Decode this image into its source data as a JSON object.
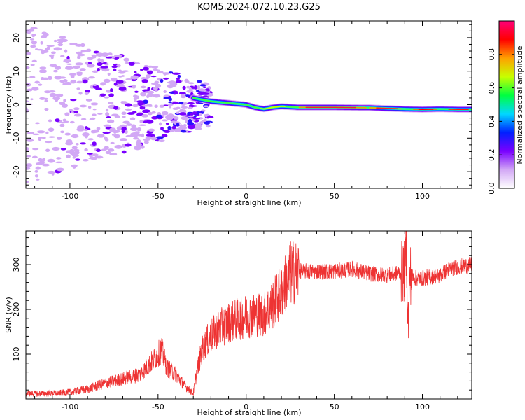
{
  "title": "KOM5.2024.072.10.23.G25",
  "chart_data": [
    {
      "type": "heatmap",
      "xlabel": "Height of straight line (km)",
      "ylabel": "Frequency (Hz)",
      "xlim": [
        -125,
        128
      ],
      "ylim": [
        -25,
        25
      ],
      "xticks": [
        -100,
        -50,
        0,
        50,
        100
      ],
      "yticks": [
        -20,
        -10,
        0,
        10,
        20
      ],
      "colorbar": {
        "label": "Normalized spectral amplitude",
        "range": [
          0,
          1
        ],
        "ticks": [
          "0.0",
          "0.2",
          "0.4",
          "0.6",
          "0.8"
        ],
        "colors": [
          "#ffffff",
          "#d2a8f5",
          "#7a00ff",
          "#0020ff",
          "#00d8ff",
          "#00ff40",
          "#c8ff00",
          "#ffa000",
          "#ff0000",
          "#ff0078"
        ]
      },
      "ridge": {
        "description_points_x": [
          -30,
          -25,
          -20,
          -10,
          0,
          5,
          10,
          15,
          20,
          30,
          50,
          70,
          90,
          100,
          110,
          120,
          128
        ],
        "description_points_y": [
          2.0,
          1.5,
          1.0,
          0.5,
          0.0,
          -0.8,
          -1.3,
          -0.8,
          -0.5,
          -0.8,
          -0.8,
          -0.9,
          -1.3,
          -1.4,
          -1.3,
          -1.4,
          -1.4
        ]
      }
    },
    {
      "type": "line",
      "xlabel": "Height of straight line (km)",
      "ylabel": "SNR (v/v)",
      "xlim": [
        -125,
        128
      ],
      "ylim": [
        0,
        375
      ],
      "xticks": [
        -100,
        -50,
        0,
        50,
        100
      ],
      "yticks": [
        100,
        200,
        300
      ],
      "color": "#ee3333",
      "series": [
        {
          "x": [
            -125,
            -110,
            -100,
            -90,
            -80,
            -70,
            -60,
            -52,
            -48,
            -45,
            -40,
            -35,
            -30,
            -28,
            -25,
            -22,
            -18,
            -10,
            0,
            10,
            15,
            20,
            25,
            30,
            40,
            50,
            60,
            70,
            80,
            90,
            91,
            92,
            93,
            95,
            100,
            110,
            115,
            120,
            128
          ],
          "y": [
            12,
            12,
            15,
            22,
            35,
            45,
            55,
            90,
            110,
            70,
            55,
            30,
            12,
            60,
            110,
            130,
            150,
            170,
            185,
            190,
            210,
            240,
            280,
            285,
            285,
            285,
            290,
            280,
            275,
            285,
            340,
            150,
            280,
            270,
            270,
            275,
            290,
            295,
            300
          ]
        }
      ]
    }
  ]
}
